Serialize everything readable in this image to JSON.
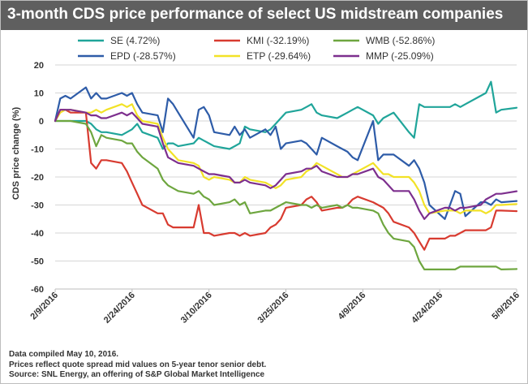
{
  "title": "3-month CDS price performance of select US midstream companies",
  "footer": {
    "line1": "Data compiled May 10, 2016.",
    "line2": "Prices reflect quote spread mid values on 5-year tenor senior debt.",
    "line3": "Source: SNL Energy, an offering of S&P Global Market Intelligence"
  },
  "chart_data": {
    "type": "line",
    "title": "3-month CDS price performance of select US midstream companies",
    "xlabel": "",
    "ylabel": "CDS price change (%)",
    "ylim": [
      -60,
      20
    ],
    "yticks": [
      20,
      10,
      0,
      -10,
      -20,
      -30,
      -40,
      -50,
      -60
    ],
    "xlim": [
      "2016-02-09",
      "2016-05-09"
    ],
    "xticks": [
      "2/9/2016",
      "2/24/2016",
      "3/10/2016",
      "3/25/2016",
      "4/9/2016",
      "4/24/2016",
      "5/9/2016"
    ],
    "grid": "horizontal",
    "legend": "top",
    "series": [
      {
        "name": "SE (4.72%)",
        "color": "#20a59a",
        "x": [
          "2016-02-09",
          "2016-02-10",
          "2016-02-11",
          "2016-02-12",
          "2016-02-15",
          "2016-02-16",
          "2016-02-17",
          "2016-02-18",
          "2016-02-19",
          "2016-02-22",
          "2016-02-23",
          "2016-02-24",
          "2016-02-25",
          "2016-02-26",
          "2016-02-29",
          "2016-03-01",
          "2016-03-02",
          "2016-03-03",
          "2016-03-04",
          "2016-03-07",
          "2016-03-08",
          "2016-03-09",
          "2016-03-10",
          "2016-03-11",
          "2016-03-14",
          "2016-03-15",
          "2016-03-16",
          "2016-03-17",
          "2016-03-18",
          "2016-03-21",
          "2016-03-22",
          "2016-03-23",
          "2016-03-24",
          "2016-03-25",
          "2016-03-28",
          "2016-03-29",
          "2016-03-30",
          "2016-03-31",
          "2016-04-01",
          "2016-04-04",
          "2016-04-05",
          "2016-04-06",
          "2016-04-07",
          "2016-04-08",
          "2016-04-11",
          "2016-04-12",
          "2016-04-13",
          "2016-04-14",
          "2016-04-15",
          "2016-04-18",
          "2016-04-19",
          "2016-04-20",
          "2016-04-21",
          "2016-04-22",
          "2016-04-25",
          "2016-04-26",
          "2016-04-27",
          "2016-04-28",
          "2016-04-29",
          "2016-05-02",
          "2016-05-03",
          "2016-05-04",
          "2016-05-05",
          "2016-05-06",
          "2016-05-09"
        ],
        "values": [
          0,
          0,
          0,
          0,
          0,
          -1,
          -3,
          -4,
          -4,
          -5,
          -4,
          -3,
          -1,
          -4,
          -6,
          -10,
          -8,
          -8,
          -9,
          -8,
          -6,
          -7,
          -8,
          -9,
          -10,
          -9,
          -8,
          -2,
          -3,
          -4,
          -3,
          -1,
          1,
          3,
          4,
          5,
          6,
          3,
          2,
          1,
          2,
          3,
          4,
          5,
          2,
          -1,
          1,
          2,
          3,
          -4,
          -6,
          6,
          5,
          5,
          5,
          5,
          6,
          5,
          6,
          9,
          10,
          14,
          3,
          4,
          4.72
        ]
      },
      {
        "name": "EPD (-28.57%)",
        "color": "#2e5ca8",
        "x": [
          "2016-02-09",
          "2016-02-10",
          "2016-02-11",
          "2016-02-12",
          "2016-02-15",
          "2016-02-16",
          "2016-02-17",
          "2016-02-18",
          "2016-02-19",
          "2016-02-22",
          "2016-02-23",
          "2016-02-24",
          "2016-02-25",
          "2016-02-26",
          "2016-02-29",
          "2016-03-01",
          "2016-03-02",
          "2016-03-03",
          "2016-03-04",
          "2016-03-07",
          "2016-03-08",
          "2016-03-09",
          "2016-03-10",
          "2016-03-11",
          "2016-03-14",
          "2016-03-15",
          "2016-03-16",
          "2016-03-17",
          "2016-03-18",
          "2016-03-21",
          "2016-03-22",
          "2016-03-23",
          "2016-03-24",
          "2016-03-25",
          "2016-03-28",
          "2016-03-29",
          "2016-03-30",
          "2016-03-31",
          "2016-04-01",
          "2016-04-04",
          "2016-04-05",
          "2016-04-06",
          "2016-04-07",
          "2016-04-08",
          "2016-04-11",
          "2016-04-12",
          "2016-04-13",
          "2016-04-14",
          "2016-04-15",
          "2016-04-18",
          "2016-04-19",
          "2016-04-20",
          "2016-04-21",
          "2016-04-22",
          "2016-04-25",
          "2016-04-26",
          "2016-04-27",
          "2016-04-28",
          "2016-04-29",
          "2016-05-02",
          "2016-05-03",
          "2016-05-04",
          "2016-05-05",
          "2016-05-06",
          "2016-05-09"
        ],
        "values": [
          0,
          8,
          9,
          8,
          12,
          8,
          10,
          8,
          8,
          10,
          9,
          10,
          6,
          3,
          2,
          -4,
          8,
          6,
          3,
          -6,
          4,
          5,
          2,
          -4,
          -5,
          -2,
          -5,
          -3,
          -6,
          -3,
          -5,
          -2,
          -10,
          -8,
          -7,
          -8,
          -10,
          -12,
          -6,
          -9,
          -10,
          -11,
          -13,
          -14,
          0,
          -14,
          -12,
          -12,
          -12,
          -16,
          -14,
          -17,
          -22,
          -30,
          -35,
          -30,
          -25,
          -26,
          -34,
          -29,
          -29,
          -30,
          -28,
          -29,
          -28.57
        ]
      },
      {
        "name": "KMI (-32.19%)",
        "color": "#d83b30",
        "x": [
          "2016-02-09",
          "2016-02-10",
          "2016-02-11",
          "2016-02-12",
          "2016-02-15",
          "2016-02-16",
          "2016-02-17",
          "2016-02-18",
          "2016-02-19",
          "2016-02-22",
          "2016-02-23",
          "2016-02-24",
          "2016-02-25",
          "2016-02-26",
          "2016-02-29",
          "2016-03-01",
          "2016-03-02",
          "2016-03-03",
          "2016-03-04",
          "2016-03-07",
          "2016-03-08",
          "2016-03-09",
          "2016-03-10",
          "2016-03-11",
          "2016-03-14",
          "2016-03-15",
          "2016-03-16",
          "2016-03-17",
          "2016-03-18",
          "2016-03-21",
          "2016-03-22",
          "2016-03-23",
          "2016-03-24",
          "2016-03-25",
          "2016-03-28",
          "2016-03-29",
          "2016-03-30",
          "2016-03-31",
          "2016-04-01",
          "2016-04-04",
          "2016-04-05",
          "2016-04-06",
          "2016-04-07",
          "2016-04-08",
          "2016-04-11",
          "2016-04-12",
          "2016-04-13",
          "2016-04-14",
          "2016-04-15",
          "2016-04-18",
          "2016-04-19",
          "2016-04-20",
          "2016-04-21",
          "2016-04-22",
          "2016-04-25",
          "2016-04-26",
          "2016-04-27",
          "2016-04-28",
          "2016-04-29",
          "2016-05-02",
          "2016-05-03",
          "2016-05-04",
          "2016-05-05",
          "2016-05-06",
          "2016-05-09"
        ],
        "values": [
          0,
          4,
          4,
          3,
          3,
          -15,
          -17,
          -14,
          -14,
          -15,
          -18,
          -22,
          -26,
          -30,
          -33,
          -33,
          -37,
          -38,
          -38,
          -38,
          -30,
          -40,
          -40,
          -41,
          -40,
          -40,
          -41,
          -40,
          -41,
          -40,
          -38,
          -37,
          -35,
          -31,
          -30,
          -28,
          -27,
          -29,
          -32,
          -31,
          -31,
          -30,
          -28,
          -27,
          -29,
          -30,
          -31,
          -33,
          -36,
          -38,
          -40,
          -43,
          -46,
          -42,
          -42,
          -41,
          -41,
          -40,
          -39,
          -39,
          -39,
          -38,
          -32,
          -32,
          -32.19
        ]
      },
      {
        "name": "ETP (-29.64%)",
        "color": "#f2e227",
        "x": [
          "2016-02-09",
          "2016-02-10",
          "2016-02-11",
          "2016-02-12",
          "2016-02-15",
          "2016-02-16",
          "2016-02-17",
          "2016-02-18",
          "2016-02-19",
          "2016-02-22",
          "2016-02-23",
          "2016-02-24",
          "2016-02-25",
          "2016-02-26",
          "2016-02-29",
          "2016-03-01",
          "2016-03-02",
          "2016-03-03",
          "2016-03-04",
          "2016-03-07",
          "2016-03-08",
          "2016-03-09",
          "2016-03-10",
          "2016-03-11",
          "2016-03-14",
          "2016-03-15",
          "2016-03-16",
          "2016-03-17",
          "2016-03-18",
          "2016-03-21",
          "2016-03-22",
          "2016-03-23",
          "2016-03-24",
          "2016-03-25",
          "2016-03-28",
          "2016-03-29",
          "2016-03-30",
          "2016-03-31",
          "2016-04-01",
          "2016-04-04",
          "2016-04-05",
          "2016-04-06",
          "2016-04-07",
          "2016-04-08",
          "2016-04-11",
          "2016-04-12",
          "2016-04-13",
          "2016-04-14",
          "2016-04-15",
          "2016-04-18",
          "2016-04-19",
          "2016-04-20",
          "2016-04-21",
          "2016-04-22",
          "2016-04-25",
          "2016-04-26",
          "2016-04-27",
          "2016-04-28",
          "2016-04-29",
          "2016-05-02",
          "2016-05-03",
          "2016-05-04",
          "2016-05-05",
          "2016-05-06",
          "2016-05-09"
        ],
        "values": [
          0,
          3,
          4,
          4,
          3,
          3,
          4,
          3,
          4,
          6,
          5,
          6,
          2,
          0,
          -1,
          -6,
          -10,
          -12,
          -14,
          -15,
          -16,
          -20,
          -21,
          -20,
          -21,
          -22,
          -22,
          -20,
          -21,
          -22,
          -23,
          -24,
          -23,
          -21,
          -20,
          -18,
          -17,
          -15,
          -16,
          -19,
          -20,
          -20,
          -19,
          -18,
          -15,
          -17,
          -19,
          -19,
          -20,
          -20,
          -22,
          -25,
          -30,
          -33,
          -32,
          -32,
          -32,
          -33,
          -32,
          -32,
          -33,
          -32,
          -30,
          -30,
          -29.64
        ]
      },
      {
        "name": "WMB (-52.86%)",
        "color": "#6ea63f",
        "x": [
          "2016-02-09",
          "2016-02-10",
          "2016-02-11",
          "2016-02-12",
          "2016-02-15",
          "2016-02-16",
          "2016-02-17",
          "2016-02-18",
          "2016-02-19",
          "2016-02-22",
          "2016-02-23",
          "2016-02-24",
          "2016-02-25",
          "2016-02-26",
          "2016-02-29",
          "2016-03-01",
          "2016-03-02",
          "2016-03-03",
          "2016-03-04",
          "2016-03-07",
          "2016-03-08",
          "2016-03-09",
          "2016-03-10",
          "2016-03-11",
          "2016-03-14",
          "2016-03-15",
          "2016-03-16",
          "2016-03-17",
          "2016-03-18",
          "2016-03-21",
          "2016-03-22",
          "2016-03-23",
          "2016-03-24",
          "2016-03-25",
          "2016-03-28",
          "2016-03-29",
          "2016-03-30",
          "2016-03-31",
          "2016-04-01",
          "2016-04-04",
          "2016-04-05",
          "2016-04-06",
          "2016-04-07",
          "2016-04-08",
          "2016-04-11",
          "2016-04-12",
          "2016-04-13",
          "2016-04-14",
          "2016-04-15",
          "2016-04-18",
          "2016-04-19",
          "2016-04-20",
          "2016-04-21",
          "2016-04-22",
          "2016-04-25",
          "2016-04-26",
          "2016-04-27",
          "2016-04-28",
          "2016-04-29",
          "2016-05-02",
          "2016-05-03",
          "2016-05-04",
          "2016-05-05",
          "2016-05-06",
          "2016-05-09"
        ],
        "values": [
          0,
          0,
          0,
          0,
          -1,
          -4,
          -9,
          -5,
          -6,
          -7,
          -8,
          -8,
          -11,
          -13,
          -17,
          -21,
          -23,
          -24,
          -25,
          -26,
          -25,
          -27,
          -28,
          -30,
          -29,
          -28,
          -30,
          -29,
          -33,
          -32,
          -32,
          -31,
          -30,
          -29,
          -30,
          -30,
          -31,
          -30,
          -31,
          -30,
          -31,
          -30,
          -31,
          -31,
          -32,
          -33,
          -37,
          -40,
          -42,
          -43,
          -45,
          -50,
          -53,
          -53,
          -53,
          -53,
          -53,
          -52,
          -52,
          -52,
          -52,
          -52,
          -52,
          -53,
          -52.86
        ]
      },
      {
        "name": "MMP (-25.09%)",
        "color": "#7d2f8e",
        "x": [
          "2016-02-09",
          "2016-02-10",
          "2016-02-11",
          "2016-02-12",
          "2016-02-15",
          "2016-02-16",
          "2016-02-17",
          "2016-02-18",
          "2016-02-19",
          "2016-02-22",
          "2016-02-23",
          "2016-02-24",
          "2016-02-25",
          "2016-02-26",
          "2016-02-29",
          "2016-03-01",
          "2016-03-02",
          "2016-03-03",
          "2016-03-04",
          "2016-03-07",
          "2016-03-08",
          "2016-03-09",
          "2016-03-10",
          "2016-03-11",
          "2016-03-14",
          "2016-03-15",
          "2016-03-16",
          "2016-03-17",
          "2016-03-18",
          "2016-03-21",
          "2016-03-22",
          "2016-03-23",
          "2016-03-24",
          "2016-03-25",
          "2016-03-28",
          "2016-03-29",
          "2016-03-30",
          "2016-03-31",
          "2016-04-01",
          "2016-04-04",
          "2016-04-05",
          "2016-04-06",
          "2016-04-07",
          "2016-04-08",
          "2016-04-11",
          "2016-04-12",
          "2016-04-13",
          "2016-04-14",
          "2016-04-15",
          "2016-04-18",
          "2016-04-19",
          "2016-04-20",
          "2016-04-21",
          "2016-04-22",
          "2016-04-25",
          "2016-04-26",
          "2016-04-27",
          "2016-04-28",
          "2016-04-29",
          "2016-05-02",
          "2016-05-03",
          "2016-05-04",
          "2016-05-05",
          "2016-05-06",
          "2016-05-09"
        ],
        "values": [
          0,
          4,
          4,
          4,
          3,
          2,
          2,
          1,
          1,
          3,
          2,
          3,
          1,
          -1,
          -2,
          -8,
          -13,
          -14,
          -15,
          -16,
          -17,
          -18,
          -19,
          -19,
          -20,
          -22,
          -22,
          -21,
          -22,
          -23,
          -24,
          -23,
          -21,
          -19,
          -18,
          -17,
          -17,
          -16,
          -18,
          -20,
          -20,
          -20,
          -19,
          -19,
          -17,
          -20,
          -21,
          -23,
          -25,
          -25,
          -28,
          -32,
          -35,
          -33,
          -31,
          -31,
          -32,
          -31,
          -31,
          -30,
          -28,
          -27,
          -26,
          -26,
          -25.09
        ]
      }
    ]
  }
}
